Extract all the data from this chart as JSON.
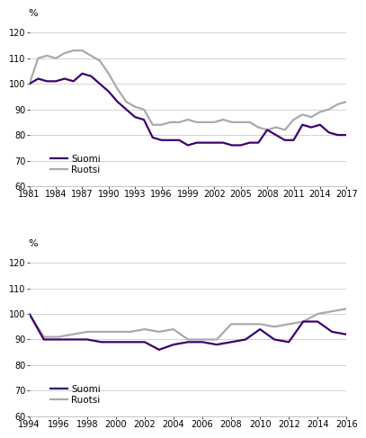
{
  "chart1": {
    "years_suomi": [
      1981,
      1982,
      1983,
      1984,
      1985,
      1986,
      1987,
      1988,
      1989,
      1990,
      1991,
      1992,
      1993,
      1994,
      1995,
      1996,
      1997,
      1998,
      1999,
      2000,
      2001,
      2002,
      2003,
      2004,
      2005,
      2006,
      2007,
      2008,
      2009,
      2010,
      2011,
      2012,
      2013,
      2014,
      2015,
      2016,
      2017
    ],
    "suomi": [
      100,
      102,
      101,
      101,
      102,
      101,
      104,
      103,
      100,
      97,
      93,
      90,
      87,
      86,
      79,
      78,
      78,
      78,
      76,
      77,
      77,
      77,
      77,
      76,
      76,
      77,
      77,
      82,
      80,
      78,
      78,
      84,
      83,
      84,
      81,
      80,
      80
    ],
    "years_ruotsi": [
      1981,
      1982,
      1983,
      1984,
      1985,
      1986,
      1987,
      1988,
      1989,
      1990,
      1991,
      1992,
      1993,
      1994,
      1995,
      1996,
      1997,
      1998,
      1999,
      2000,
      2001,
      2002,
      2003,
      2004,
      2005,
      2006,
      2007,
      2008,
      2009,
      2010,
      2011,
      2012,
      2013,
      2014,
      2015,
      2016,
      2017
    ],
    "ruotsi": [
      100,
      110,
      111,
      110,
      112,
      113,
      113,
      111,
      109,
      104,
      98,
      93,
      91,
      90,
      84,
      84,
      85,
      85,
      86,
      85,
      85,
      85,
      86,
      85,
      85,
      85,
      83,
      82,
      83,
      82,
      86,
      88,
      87,
      89,
      90,
      92,
      93
    ],
    "xlim": [
      1981,
      2017
    ],
    "ylim": [
      60,
      122
    ],
    "yticks": [
      60,
      70,
      80,
      90,
      100,
      110,
      120
    ],
    "xticks": [
      1981,
      1984,
      1987,
      1990,
      1993,
      1996,
      1999,
      2002,
      2005,
      2008,
      2011,
      2014,
      2017
    ]
  },
  "chart2": {
    "years_suomi": [
      1994,
      1995,
      1996,
      1997,
      1998,
      1999,
      2000,
      2001,
      2002,
      2003,
      2004,
      2005,
      2006,
      2007,
      2008,
      2009,
      2010,
      2011,
      2012,
      2013,
      2014,
      2015,
      2016
    ],
    "suomi": [
      100,
      90,
      90,
      90,
      90,
      89,
      89,
      89,
      89,
      86,
      88,
      89,
      89,
      88,
      89,
      90,
      94,
      90,
      89,
      97,
      97,
      93,
      92
    ],
    "years_ruotsi": [
      1994,
      1995,
      1996,
      1997,
      1998,
      1999,
      2000,
      2001,
      2002,
      2003,
      2004,
      2005,
      2006,
      2007,
      2008,
      2009,
      2010,
      2011,
      2012,
      2013,
      2014,
      2015,
      2016
    ],
    "ruotsi": [
      100,
      91,
      91,
      92,
      93,
      93,
      93,
      93,
      94,
      93,
      94,
      90,
      90,
      90,
      96,
      96,
      96,
      95,
      96,
      97,
      100,
      101,
      102
    ],
    "xlim": [
      1994,
      2016
    ],
    "ylim": [
      60,
      122
    ],
    "yticks": [
      60,
      70,
      80,
      90,
      100,
      110,
      120
    ],
    "xticks": [
      1994,
      1996,
      1998,
      2000,
      2002,
      2004,
      2006,
      2008,
      2010,
      2012,
      2014,
      2016
    ]
  },
  "suomi_color": "#3d006e",
  "ruotsi_color": "#aaaaaa",
  "line_width": 1.6,
  "legend_fontsize": 7.5,
  "tick_fontsize": 7,
  "pct_fontsize": 8,
  "background_color": "#ffffff",
  "grid_color": "#cccccc",
  "spine_color": "#aaaaaa"
}
